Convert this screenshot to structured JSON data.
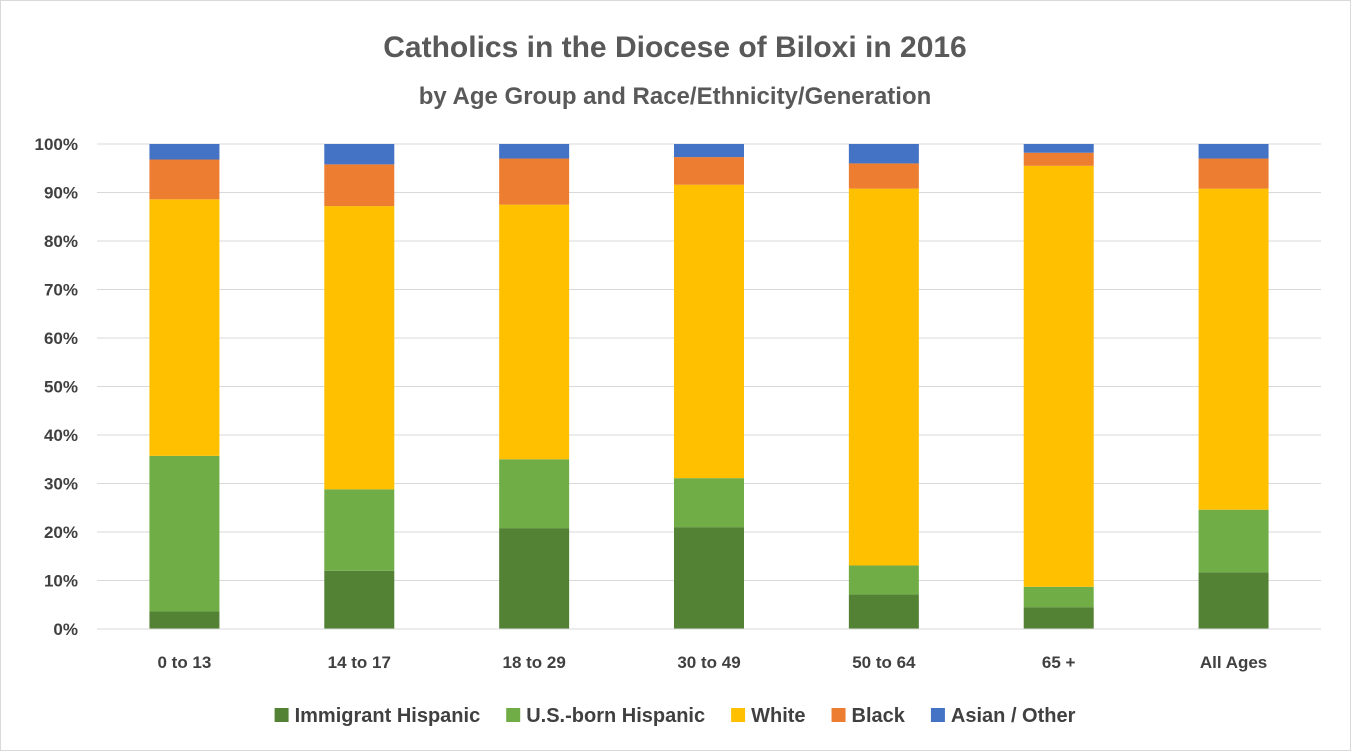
{
  "chart_data": {
    "type": "bar",
    "stacked": true,
    "title": "Catholics in the Diocese of Biloxi in 2016",
    "subtitle": "by Age Group and Race/Ethnicity/Generation",
    "categories": [
      "0 to 13",
      "14 to 17",
      "18 to 29",
      "30 to 49",
      "50 to 64",
      "65 +",
      "All Ages"
    ],
    "ylim": [
      0,
      100
    ],
    "yticks": [
      "0%",
      "10%",
      "20%",
      "30%",
      "40%",
      "50%",
      "60%",
      "70%",
      "80%",
      "90%",
      "100%"
    ],
    "grid": true,
    "legend_position": "bottom",
    "series": [
      {
        "name": "Immigrant Hispanic",
        "color": "#548235",
        "values": [
          3.6,
          12.0,
          20.8,
          21.0,
          7.1,
          4.5,
          11.7
        ]
      },
      {
        "name": "U.S.-born Hispanic",
        "color": "#70ad47",
        "values": [
          32.1,
          16.8,
          14.2,
          10.1,
          6.0,
          4.2,
          12.9
        ]
      },
      {
        "name": "White",
        "color": "#ffc000",
        "values": [
          52.9,
          58.4,
          52.5,
          60.5,
          77.7,
          86.8,
          66.2
        ]
      },
      {
        "name": "Black",
        "color": "#ed7d31",
        "values": [
          8.2,
          8.6,
          9.5,
          5.7,
          5.2,
          2.7,
          6.2
        ]
      },
      {
        "name": "Asian / Other",
        "color": "#4472c4",
        "values": [
          3.2,
          4.2,
          3.0,
          2.7,
          4.0,
          1.8,
          3.0
        ]
      }
    ]
  }
}
